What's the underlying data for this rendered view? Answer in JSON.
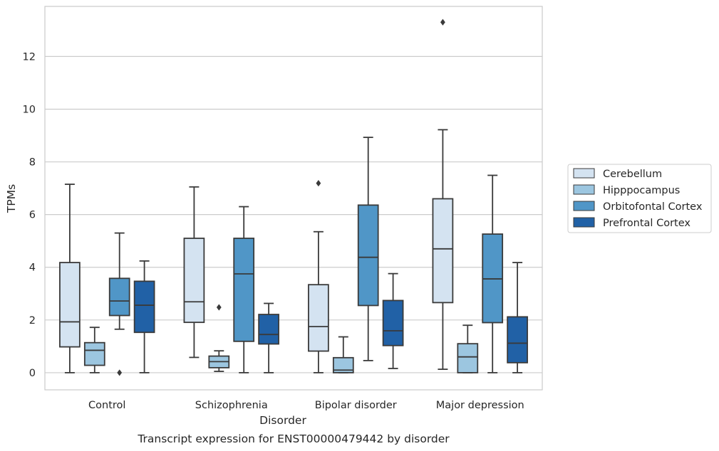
{
  "chart_data": {
    "type": "box",
    "title": "",
    "caption": "Transcript expression for ENST00000479442 by disorder",
    "xlabel": "Disorder",
    "ylabel": "TPMs",
    "ylim": [
      -0.65,
      13.9
    ],
    "yticks": [
      0,
      2,
      4,
      6,
      8,
      10,
      12
    ],
    "grid": "horizontal",
    "legend_position": "right",
    "categories": [
      "Control",
      "Schizophrenia",
      "Bipolar disorder",
      "Major depression"
    ],
    "series": [
      {
        "name": "Cerebellum",
        "color": "#d4e3f1",
        "boxes": [
          {
            "whisker_low": 0.0,
            "q1": 0.98,
            "median": 1.93,
            "q3": 4.18,
            "whisker_high": 7.15,
            "outliers": []
          },
          {
            "whisker_low": 0.58,
            "q1": 1.91,
            "median": 2.69,
            "q3": 5.1,
            "whisker_high": 7.05,
            "outliers": []
          },
          {
            "whisker_low": 0.0,
            "q1": 0.82,
            "median": 1.75,
            "q3": 3.34,
            "whisker_high": 5.35,
            "outliers": [
              7.19
            ]
          },
          {
            "whisker_low": 0.13,
            "q1": 2.66,
            "median": 4.7,
            "q3": 6.6,
            "whisker_high": 9.22,
            "outliers": [
              13.3
            ]
          }
        ]
      },
      {
        "name": "Hipppocampus",
        "color": "#9cc6e0",
        "boxes": [
          {
            "whisker_low": 0.0,
            "q1": 0.28,
            "median": 0.85,
            "q3": 1.14,
            "whisker_high": 1.72,
            "outliers": []
          },
          {
            "whisker_low": 0.05,
            "q1": 0.19,
            "median": 0.42,
            "q3": 0.63,
            "whisker_high": 0.83,
            "outliers": [
              2.48
            ]
          },
          {
            "whisker_low": 0.0,
            "q1": 0.0,
            "median": 0.1,
            "q3": 0.57,
            "whisker_high": 1.36,
            "outliers": []
          },
          {
            "whisker_low": 0.0,
            "q1": 0.0,
            "median": 0.6,
            "q3": 1.1,
            "whisker_high": 1.8,
            "outliers": []
          }
        ]
      },
      {
        "name": "Orbitofontal Cortex",
        "color": "#5096c7",
        "boxes": [
          {
            "whisker_low": 1.65,
            "q1": 2.17,
            "median": 2.72,
            "q3": 3.58,
            "whisker_high": 5.3,
            "outliers": [
              0.0
            ]
          },
          {
            "whisker_low": 0.0,
            "q1": 1.19,
            "median": 3.75,
            "q3": 5.1,
            "whisker_high": 6.3,
            "outliers": []
          },
          {
            "whisker_low": 0.46,
            "q1": 2.55,
            "median": 4.38,
            "q3": 6.36,
            "whisker_high": 8.93,
            "outliers": []
          },
          {
            "whisker_low": 0.0,
            "q1": 1.9,
            "median": 3.56,
            "q3": 5.26,
            "whisker_high": 7.49,
            "outliers": []
          }
        ]
      },
      {
        "name": "Prefrontal Cortex",
        "color": "#2161a6",
        "boxes": [
          {
            "whisker_low": 0.0,
            "q1": 1.53,
            "median": 2.56,
            "q3": 3.47,
            "whisker_high": 4.24,
            "outliers": []
          },
          {
            "whisker_low": 0.0,
            "q1": 1.09,
            "median": 1.45,
            "q3": 2.21,
            "whisker_high": 2.63,
            "outliers": []
          },
          {
            "whisker_low": 0.16,
            "q1": 1.03,
            "median": 1.59,
            "q3": 2.74,
            "whisker_high": 3.76,
            "outliers": []
          },
          {
            "whisker_low": 0.0,
            "q1": 0.38,
            "median": 1.12,
            "q3": 2.12,
            "whisker_high": 4.18,
            "outliers": []
          }
        ]
      }
    ]
  }
}
